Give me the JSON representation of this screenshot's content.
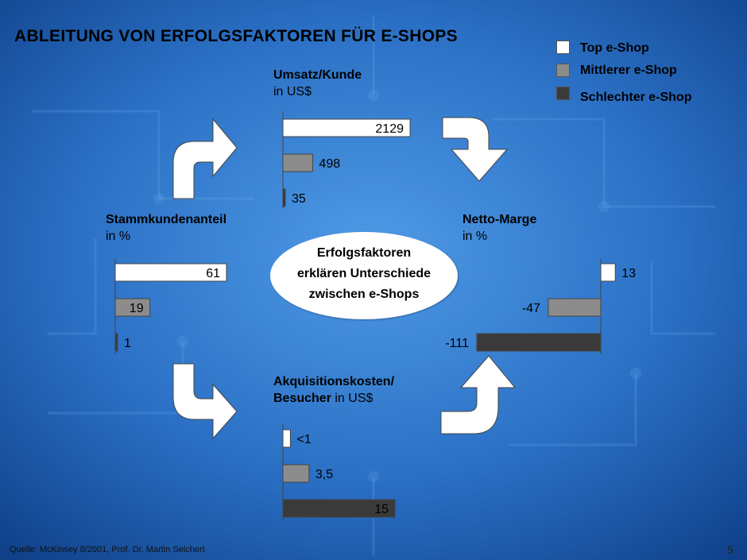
{
  "title": "ABLEITUNG VON ERFOLGSFAKTOREN FÜR E-SHOPS",
  "legend": [
    {
      "label": "Top e-Shop",
      "color": "#ffffff"
    },
    {
      "label": "Mittlerer e-Shop",
      "color": "#8c8c8c"
    },
    {
      "label": "Schlechter e-Shop",
      "color": "#3a3a3a"
    }
  ],
  "center": {
    "line1": "Erfolgsfaktoren",
    "line2": "erklären Unterschiede",
    "line3": "zwischen e-Shops"
  },
  "chart_data": [
    {
      "type": "bar",
      "title_bold": "Umsatz/Kunde",
      "title_rest": "in US$",
      "categories": [
        "Top e-Shop",
        "Mittlerer e-Shop",
        "Schlechter e-Shop"
      ],
      "values": [
        2129,
        498,
        35
      ],
      "labels": [
        "2129",
        "498",
        "35"
      ]
    },
    {
      "type": "bar",
      "title_bold": "Stammkundenanteil",
      "title_rest": "in %",
      "categories": [
        "Top e-Shop",
        "Mittlerer e-Shop",
        "Schlechter e-Shop"
      ],
      "values": [
        61,
        19,
        1
      ],
      "labels": [
        "61",
        "19",
        "1"
      ]
    },
    {
      "type": "bar",
      "title_bold": "Netto-Marge",
      "title_rest": "in %",
      "categories": [
        "Top e-Shop",
        "Mittlerer e-Shop",
        "Schlechter e-Shop"
      ],
      "values": [
        13,
        -47,
        -111
      ],
      "labels": [
        "13",
        "-47",
        "-111"
      ]
    },
    {
      "type": "bar",
      "title_bold_1": "Akquisitionskosten/",
      "title_bold_2": "Besucher",
      "title_rest": "in US$",
      "categories": [
        "Top e-Shop",
        "Mittlerer e-Shop",
        "Schlechter e-Shop"
      ],
      "values": [
        1,
        3.5,
        15
      ],
      "labels": [
        "<1",
        "3,5",
        "15"
      ]
    }
  ],
  "footer": {
    "source": "Quelle: McKinsey 8/2001, Prof. Dr. Martin Selchert",
    "page": "5"
  }
}
